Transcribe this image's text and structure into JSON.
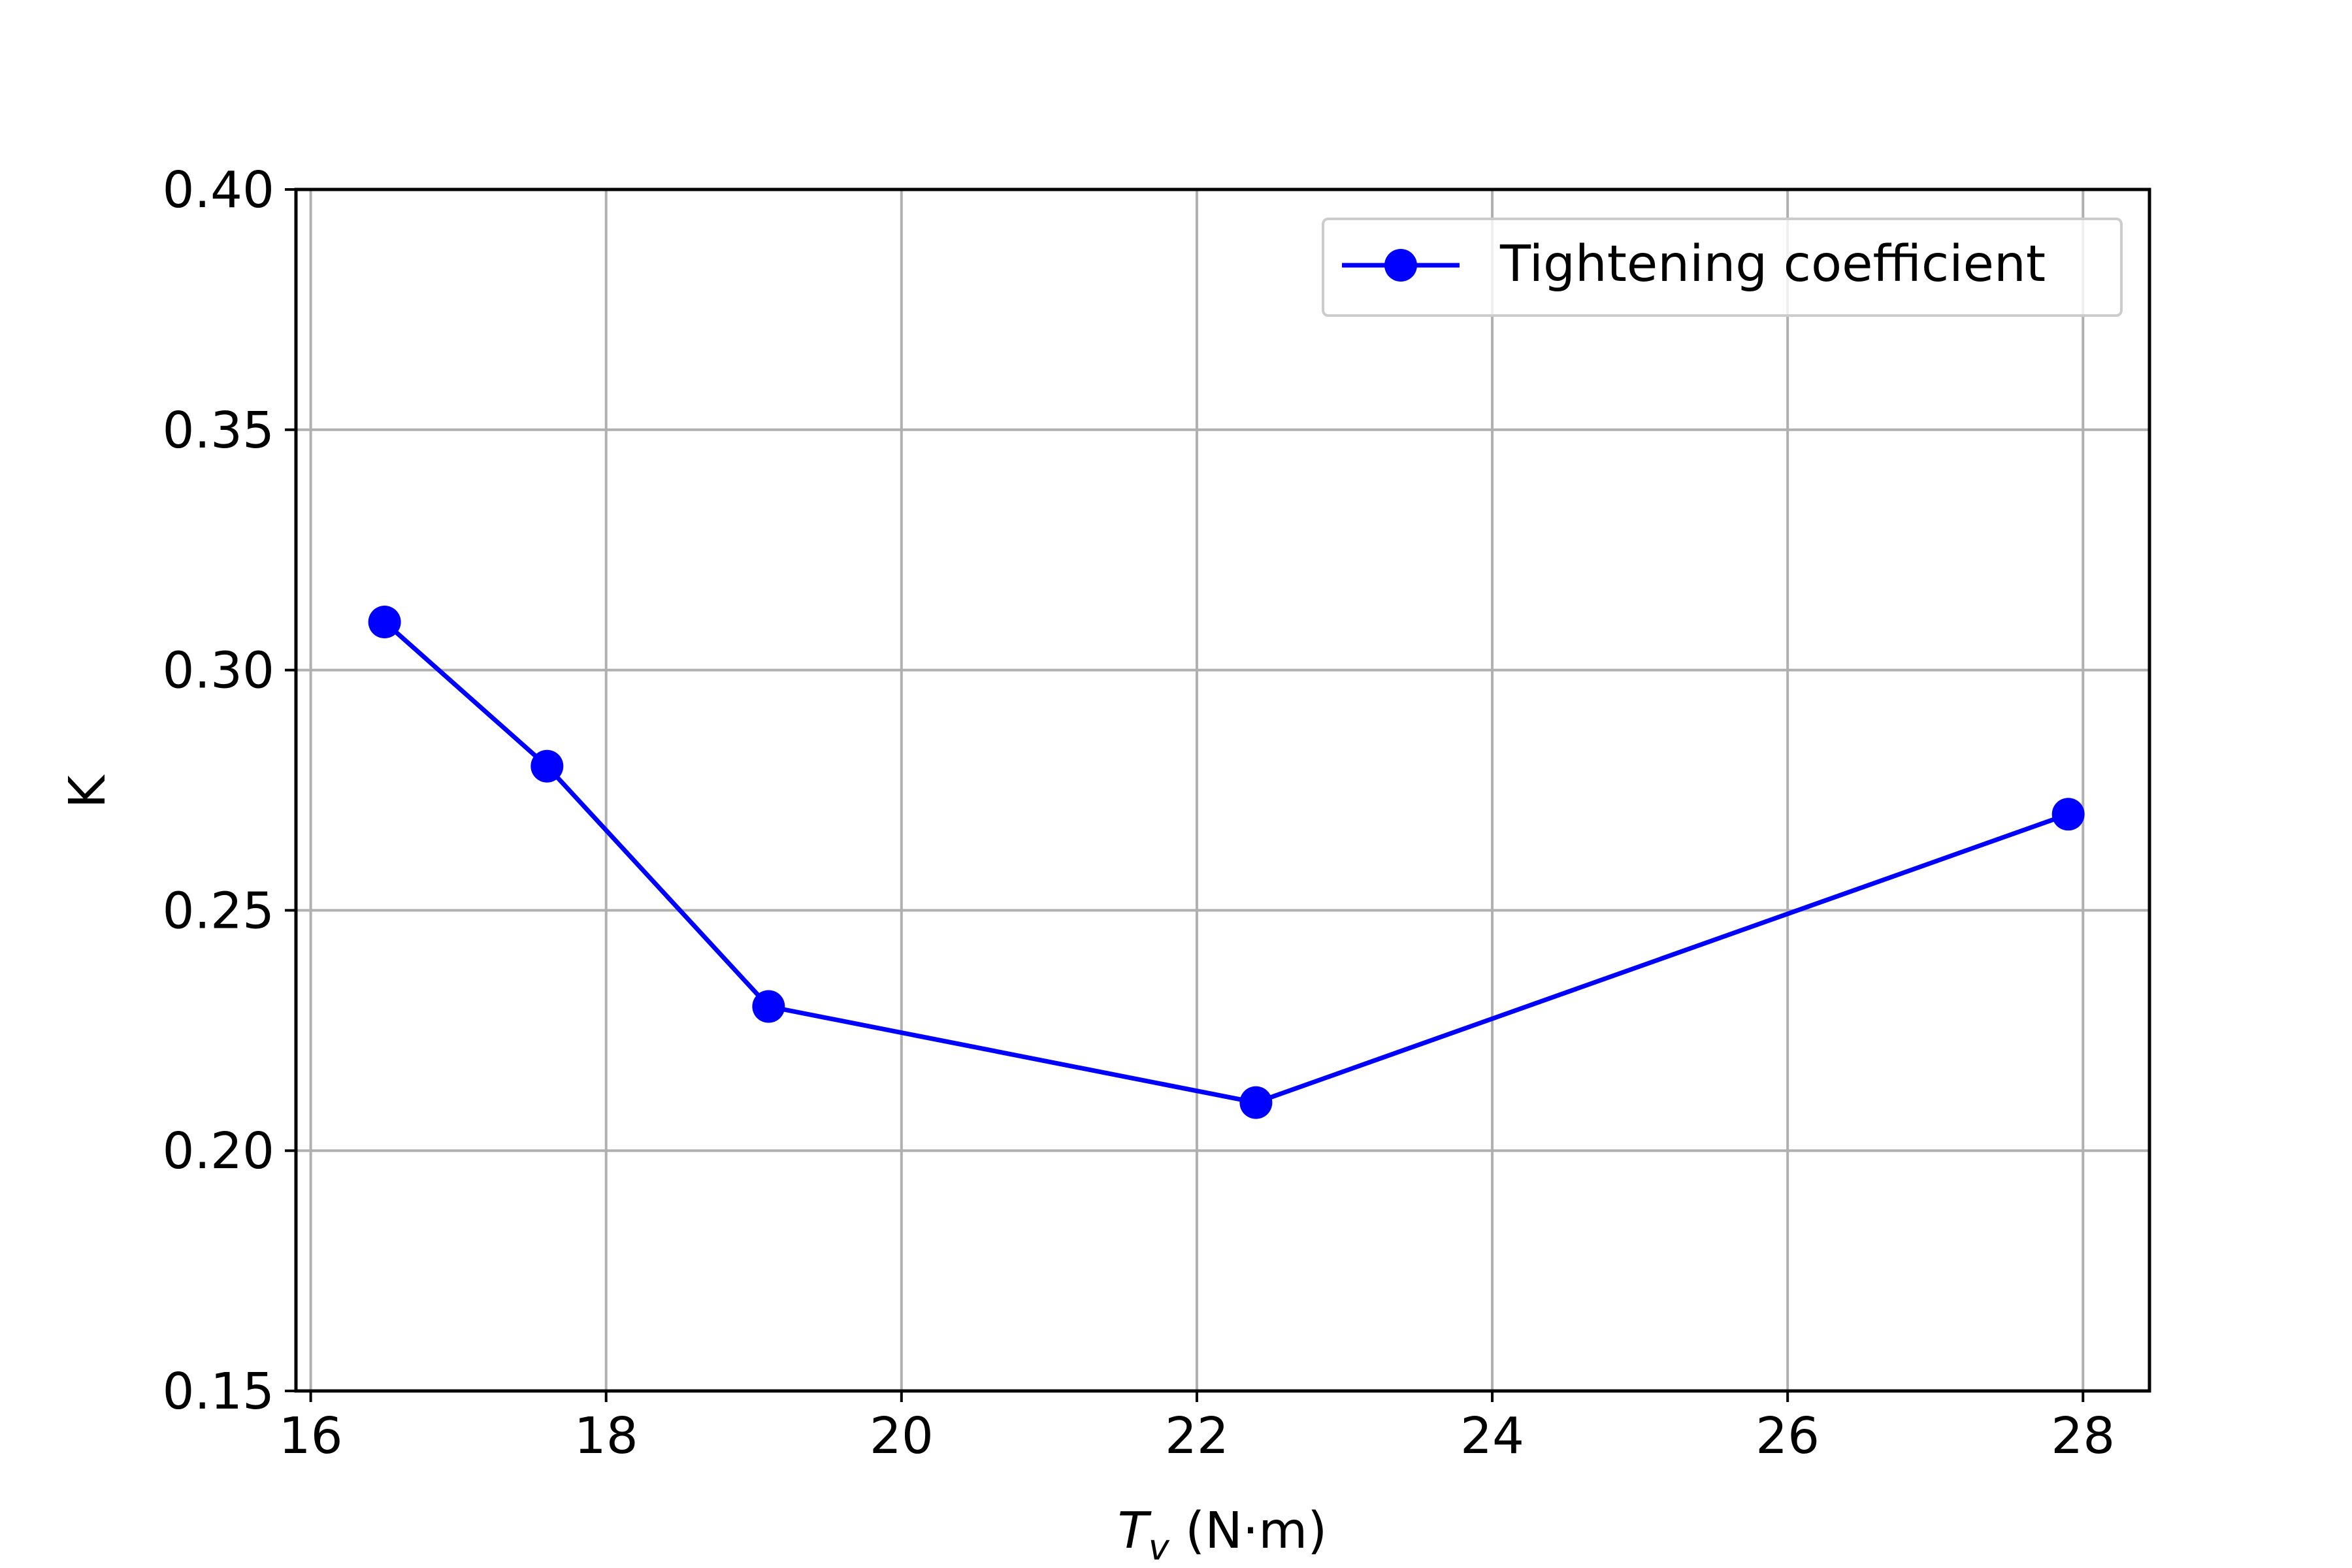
{
  "chart_data": {
    "type": "line",
    "xlabel": {
      "symbol": "T",
      "subscript": "v",
      "unit": " (N·m)"
    },
    "ylabel": "K",
    "xlim": [
      15.9,
      28.45
    ],
    "ylim": [
      0.15,
      0.4
    ],
    "xticks": [
      16,
      18,
      20,
      22,
      24,
      26,
      28
    ],
    "xtick_labels": [
      "16",
      "18",
      "20",
      "22",
      "24",
      "26",
      "28"
    ],
    "yticks": [
      0.15,
      0.2,
      0.25,
      0.3,
      0.35,
      0.4
    ],
    "ytick_labels": [
      "0.15",
      "0.20",
      "0.25",
      "0.30",
      "0.35",
      "0.40"
    ],
    "grid": true,
    "legend_position": "top-right",
    "series": [
      {
        "name": "Tightening coefficient",
        "color": "#0000ff",
        "marker": "circle",
        "x": [
          16.5,
          17.6,
          19.1,
          22.4,
          27.9
        ],
        "y": [
          0.31,
          0.28,
          0.23,
          0.21,
          0.27
        ]
      }
    ]
  }
}
